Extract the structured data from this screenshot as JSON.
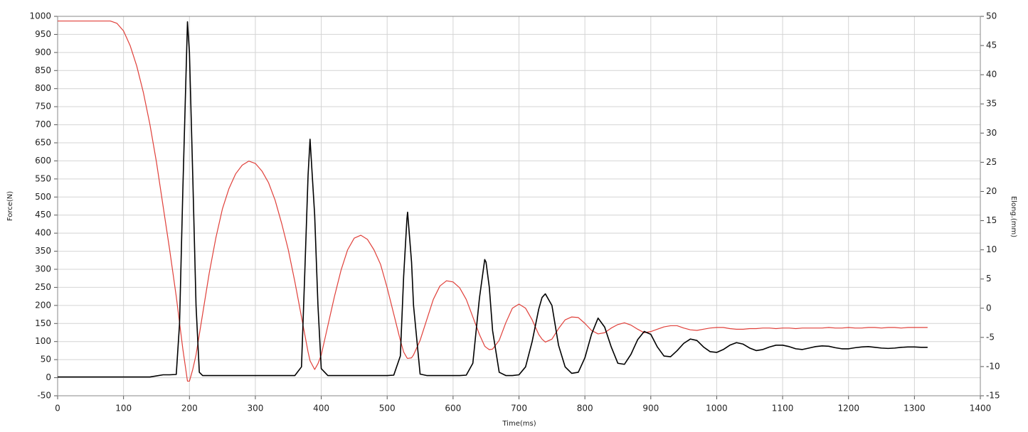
{
  "chart_data": {
    "type": "line",
    "xlabel": "Time(ms)",
    "ylabel": "Force(N)",
    "y2label": "Elong.(mm)",
    "x": [
      0,
      10,
      20,
      30,
      40,
      50,
      60,
      70,
      80,
      90,
      100,
      110,
      120,
      130,
      140,
      150,
      160,
      170,
      180,
      185,
      190,
      197,
      200,
      205,
      210,
      215,
      220,
      230,
      240,
      250,
      260,
      270,
      280,
      290,
      300,
      310,
      320,
      330,
      340,
      350,
      360,
      370,
      375,
      380,
      383,
      390,
      395,
      400,
      410,
      420,
      430,
      440,
      450,
      460,
      470,
      480,
      490,
      500,
      510,
      520,
      525,
      530,
      531,
      537,
      540,
      550,
      560,
      570,
      580,
      590,
      600,
      610,
      620,
      630,
      640,
      648,
      650,
      655,
      660,
      670,
      680,
      690,
      700,
      710,
      720,
      730,
      735,
      740,
      750,
      760,
      770,
      780,
      790,
      800,
      810,
      820,
      830,
      840,
      850,
      860,
      870,
      880,
      890,
      900,
      910,
      920,
      930,
      940,
      950,
      960,
      970,
      980,
      990,
      1000,
      1010,
      1020,
      1030,
      1040,
      1050,
      1060,
      1070,
      1080,
      1090,
      1100,
      1110,
      1120,
      1130,
      1140,
      1150,
      1160,
      1170,
      1180,
      1190,
      1200,
      1210,
      1220,
      1230,
      1240,
      1250,
      1260,
      1270,
      1280,
      1290,
      1300,
      1310,
      1320
    ],
    "series": [
      {
        "color": "#000000",
        "axis": "y",
        "values": [
          2,
          2,
          2,
          2,
          2,
          2,
          2,
          2,
          2,
          2,
          2,
          2,
          2,
          2,
          2,
          5,
          8,
          8,
          9,
          150,
          520,
          985,
          900,
          560,
          200,
          15,
          6,
          6,
          6,
          6,
          6,
          6,
          6,
          6,
          6,
          6,
          6,
          6,
          6,
          6,
          6,
          30,
          290,
          560,
          660,
          450,
          200,
          25,
          6,
          6,
          6,
          6,
          6,
          6,
          6,
          6,
          6,
          6,
          7,
          60,
          280,
          440,
          458,
          320,
          200,
          10,
          6,
          6,
          6,
          6,
          6,
          6,
          7,
          40,
          220,
          327,
          320,
          250,
          130,
          15,
          6,
          6,
          8,
          30,
          100,
          190,
          222,
          232,
          200,
          90,
          30,
          12,
          15,
          55,
          120,
          165,
          140,
          85,
          40,
          37,
          65,
          105,
          128,
          120,
          85,
          60,
          58,
          75,
          95,
          107,
          103,
          85,
          72,
          70,
          78,
          90,
          97,
          93,
          82,
          75,
          78,
          85,
          90,
          90,
          86,
          80,
          78,
          82,
          86,
          88,
          87,
          83,
          80,
          80,
          83,
          85,
          86,
          84,
          82,
          81,
          82,
          84,
          85,
          85,
          84,
          84
        ]
      },
      {
        "color": "#e0403a",
        "axis": "y2",
        "values": [
          49.2,
          49.2,
          49.2,
          49.2,
          49.2,
          49.2,
          49.2,
          49.2,
          49.2,
          48.8,
          47.5,
          45,
          41.5,
          37,
          31.5,
          25,
          17.5,
          10,
          2,
          -2.5,
          -7,
          -12.5,
          -12.5,
          -10.5,
          -8,
          -4.5,
          -1,
          6,
          12,
          17,
          20.5,
          23,
          24.5,
          25.2,
          24.8,
          23.5,
          21.5,
          18.5,
          14.5,
          10,
          4.5,
          -1.5,
          -4.5,
          -7.5,
          -9,
          -10.5,
          -9.5,
          -8,
          -3,
          2,
          6.5,
          10,
          12,
          12.5,
          11.8,
          10,
          7.5,
          3.5,
          -1,
          -5.5,
          -7.5,
          -8.5,
          -8.6,
          -8.5,
          -8,
          -5.5,
          -2,
          1.5,
          3.8,
          4.7,
          4.5,
          3.5,
          1.5,
          -1.5,
          -4.5,
          -6.5,
          -6.7,
          -7.1,
          -7,
          -5.5,
          -2.5,
          0,
          0.7,
          0,
          -2,
          -4.5,
          -5.3,
          -5.8,
          -5.3,
          -3.5,
          -2,
          -1.5,
          -1.6,
          -2.6,
          -3.8,
          -4.4,
          -4.2,
          -3.4,
          -2.8,
          -2.5,
          -2.9,
          -3.6,
          -4.2,
          -4.0,
          -3.6,
          -3.2,
          -3.0,
          -3.0,
          -3.4,
          -3.7,
          -3.8,
          -3.6,
          -3.4,
          -3.3,
          -3.3,
          -3.5,
          -3.6,
          -3.6,
          -3.5,
          -3.5,
          -3.4,
          -3.4,
          -3.5,
          -3.4,
          -3.4,
          -3.5,
          -3.4,
          -3.4,
          -3.4,
          -3.4,
          -3.3,
          -3.4,
          -3.4,
          -3.3,
          -3.4,
          -3.4,
          -3.3,
          -3.3,
          -3.4,
          -3.3,
          -3.3,
          -3.4,
          -3.3,
          -3.3,
          -3.3,
          -3.3
        ]
      }
    ],
    "xlim": [
      0,
      1400
    ],
    "xticks": [
      0,
      100,
      200,
      300,
      400,
      500,
      600,
      700,
      800,
      900,
      1000,
      1100,
      1200,
      1300,
      1400
    ],
    "ylim": [
      -50,
      1000
    ],
    "yticks": [
      -50,
      0,
      50,
      100,
      150,
      200,
      250,
      300,
      350,
      400,
      450,
      500,
      550,
      600,
      650,
      700,
      750,
      800,
      850,
      900,
      950,
      1000
    ],
    "y2lim": [
      -15,
      50
    ],
    "y2ticks": [
      -15,
      -10,
      -5,
      0,
      5,
      10,
      15,
      20,
      25,
      30,
      35,
      40,
      45,
      50
    ],
    "grid": true
  }
}
